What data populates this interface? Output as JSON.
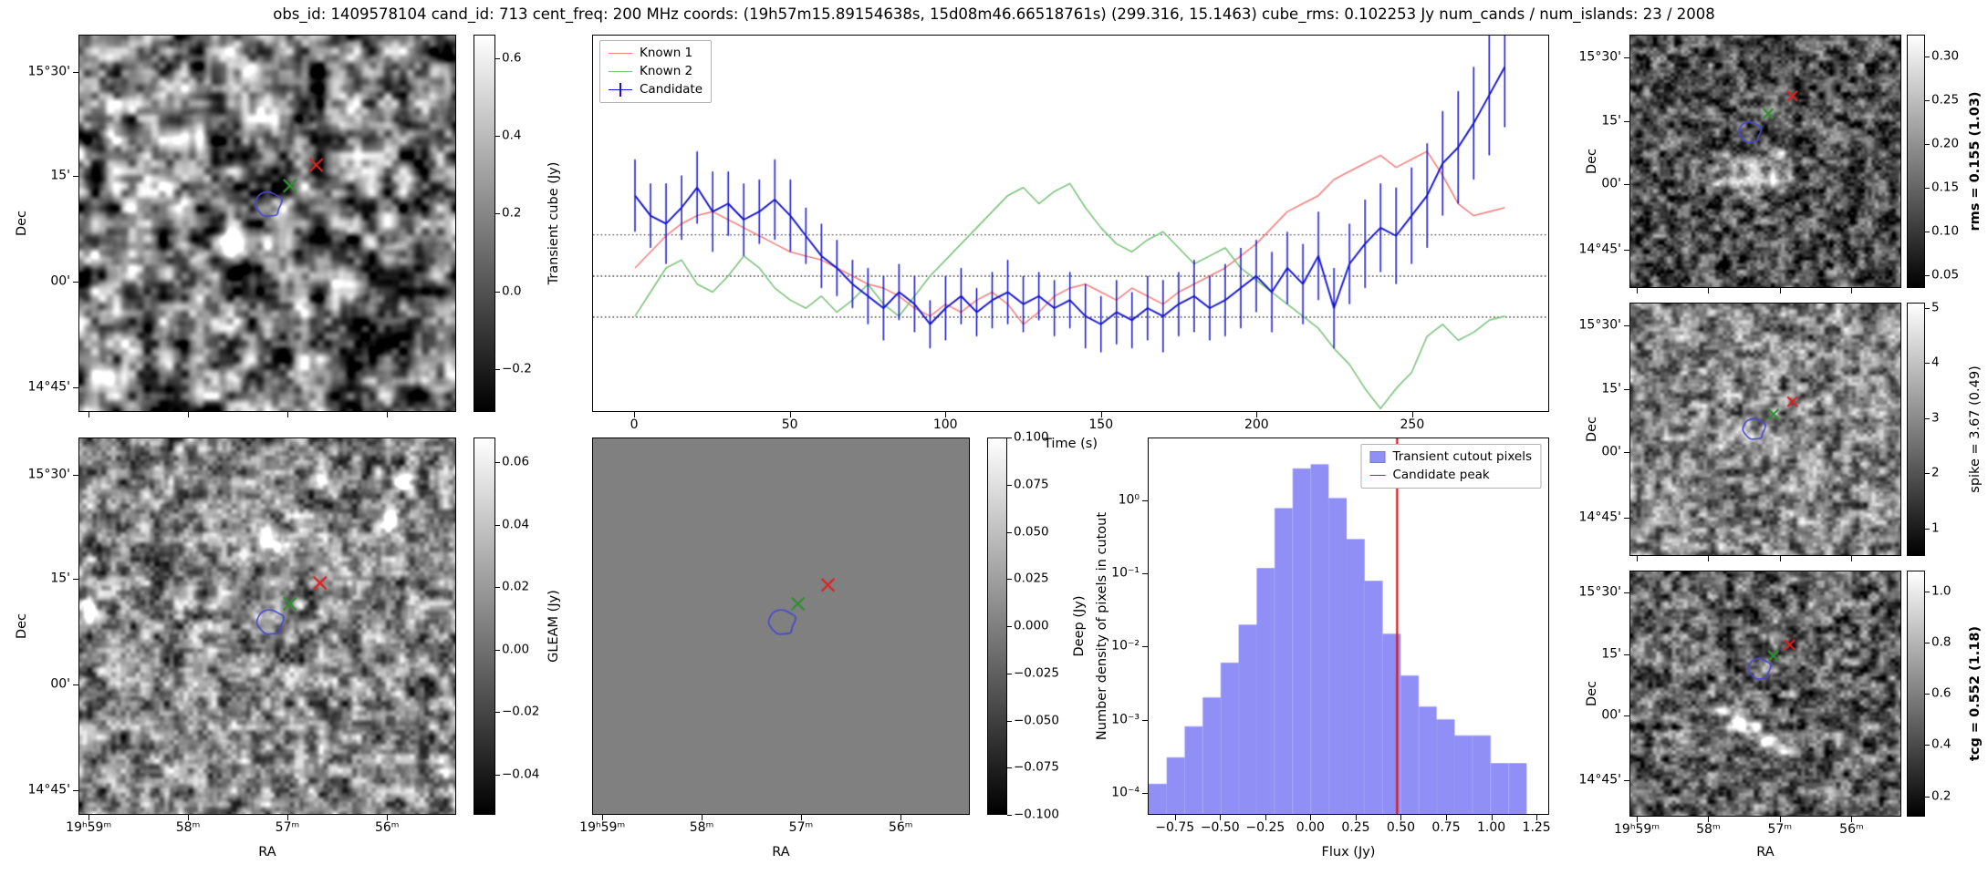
{
  "title": "obs_id: 1409578104 cand_id: 713 cent_freq: 200 MHz coords: (19h57m15.89154638s, 15d08m46.66518761s) (299.316, 15.1463) cube_rms: 0.102253 Jy num_cands / num_islands: 23 / 2008",
  "colors": {
    "known1": "#f4827e",
    "known2": "#7cc47c",
    "candidate": "#1414d2",
    "marker_green": "#2f8f2f",
    "marker_red": "#df2222",
    "contour": "#4848cf",
    "hist_fill": "#8f8ff5",
    "hist_peak_line": "#e01212",
    "dotted_line": "#000000"
  },
  "axes": {
    "dec_label": "Dec",
    "ra_label": "RA",
    "dec_ticks": [
      "15°30'",
      "15'",
      "00'",
      "14°45'"
    ],
    "ra_ticks": [
      "19ʰ59ᵐ",
      "58ᵐ",
      "57ᵐ",
      "56ᵐ"
    ]
  },
  "colorbars": {
    "cube": {
      "label": "Transient cube (Jy)",
      "bold": false,
      "tick_labels": [
        "0.6",
        "0.4",
        "0.2",
        "0.0",
        "−0.2"
      ],
      "tick_values": [
        0.6,
        0.4,
        0.2,
        0.0,
        -0.2
      ],
      "vmin": -0.31,
      "vmax": 0.66
    },
    "gleam": {
      "label": "GLEAM (Jy)",
      "bold": false,
      "tick_labels": [
        "0.06",
        "0.04",
        "0.02",
        "0.00",
        "−0.02",
        "−0.04"
      ],
      "tick_values": [
        0.06,
        0.04,
        0.02,
        0.0,
        -0.02,
        -0.04
      ],
      "vmin": -0.053,
      "vmax": 0.068
    },
    "deep": {
      "label": "Deep (Jy)",
      "bold": false,
      "tick_labels": [
        "0.100",
        "0.075",
        "0.050",
        "0.025",
        "0.000",
        "−0.025",
        "−0.050",
        "−0.075",
        "−0.100"
      ],
      "tick_values": [
        0.1,
        0.075,
        0.05,
        0.025,
        0.0,
        -0.025,
        -0.05,
        -0.075,
        -0.1
      ],
      "vmin": -0.1,
      "vmax": 0.1
    },
    "rms": {
      "label": "rms = 0.155 (1.03)",
      "bold": true,
      "tick_labels": [
        "0.30",
        "0.25",
        "0.20",
        "0.15",
        "0.10",
        "0.05"
      ],
      "tick_values": [
        0.3,
        0.25,
        0.2,
        0.15,
        0.1,
        0.05
      ],
      "vmin": 0.035,
      "vmax": 0.325
    },
    "spike": {
      "label": "spike = 3.67 (0.49)",
      "bold": false,
      "tick_labels": [
        "5",
        "4",
        "3",
        "2",
        "1"
      ],
      "tick_values": [
        5,
        4,
        3,
        2,
        1
      ],
      "vmin": 0.5,
      "vmax": 5.1
    },
    "tcg": {
      "label": "tcg = 0.552 (1.18)",
      "bold": true,
      "tick_labels": [
        "1.0",
        "0.8",
        "0.6",
        "0.4",
        "0.2"
      ],
      "tick_values": [
        1.0,
        0.8,
        0.6,
        0.4,
        0.2
      ],
      "vmin": 0.12,
      "vmax": 1.08
    }
  },
  "panels": {
    "cube": {
      "markers": {
        "green": [
          0.56,
          0.4
        ],
        "red": [
          0.63,
          0.345
        ],
        "contour": [
          0.5,
          0.45
        ]
      }
    },
    "gleam": {
      "markers": {
        "green": [
          0.56,
          0.44
        ],
        "red": [
          0.64,
          0.385
        ],
        "contour": [
          0.505,
          0.49
        ]
      }
    },
    "deep": {
      "markers": {
        "green": [
          0.545,
          0.44
        ],
        "red": [
          0.625,
          0.39
        ],
        "contour": [
          0.5,
          0.49
        ]
      }
    },
    "rms": {
      "markers": {
        "green": [
          0.51,
          0.31
        ],
        "red": [
          0.6,
          0.24
        ],
        "contour": [
          0.44,
          0.385
        ]
      }
    },
    "spike": {
      "markers": {
        "green": [
          0.53,
          0.44
        ],
        "red": [
          0.6,
          0.39
        ],
        "contour": [
          0.455,
          0.5
        ]
      }
    },
    "tcg": {
      "markers": {
        "green": [
          0.53,
          0.345
        ],
        "red": [
          0.59,
          0.3
        ],
        "contour": [
          0.475,
          0.4
        ]
      }
    }
  },
  "chart_data": [
    {
      "type": "line",
      "name": "lightcurve",
      "xlabel": "Time (s)",
      "ylabel": "",
      "xlim": [
        -13.5,
        294
      ],
      "ylim": [
        -0.336,
        0.598
      ],
      "xticks": [
        0,
        50,
        100,
        150,
        200,
        250
      ],
      "hlines": [
        0.102253,
        0.0,
        -0.102253
      ],
      "legend_position": "upper left",
      "x": [
        0,
        5,
        10,
        15,
        20,
        25,
        30,
        35,
        40,
        45,
        50,
        55,
        60,
        65,
        70,
        75,
        80,
        85,
        90,
        95,
        100,
        105,
        110,
        115,
        120,
        125,
        130,
        135,
        140,
        145,
        150,
        155,
        160,
        165,
        170,
        175,
        180,
        185,
        190,
        195,
        200,
        205,
        210,
        215,
        220,
        225,
        230,
        235,
        240,
        245,
        250,
        255,
        260,
        265,
        270,
        275,
        280
      ],
      "series": [
        {
          "name": "Known 1",
          "values": [
            0.02,
            0.06,
            0.1,
            0.13,
            0.15,
            0.16,
            0.14,
            0.12,
            0.1,
            0.08,
            0.06,
            0.05,
            0.04,
            0.02,
            0.0,
            -0.02,
            -0.03,
            -0.05,
            -0.08,
            -0.1,
            -0.07,
            -0.09,
            -0.06,
            -0.04,
            -0.07,
            -0.12,
            -0.09,
            -0.05,
            -0.03,
            -0.02,
            -0.04,
            -0.06,
            -0.03,
            -0.05,
            -0.07,
            -0.04,
            -0.02,
            0.0,
            0.02,
            0.05,
            0.08,
            0.12,
            0.16,
            0.18,
            0.2,
            0.24,
            0.26,
            0.28,
            0.3,
            0.27,
            0.29,
            0.31,
            0.25,
            0.18,
            0.15,
            0.16,
            0.17
          ]
        },
        {
          "name": "Known 2",
          "values": [
            -0.1,
            -0.04,
            0.02,
            0.04,
            -0.02,
            -0.04,
            0.0,
            0.05,
            0.02,
            -0.03,
            -0.06,
            -0.08,
            -0.05,
            -0.09,
            -0.06,
            -0.02,
            -0.07,
            -0.1,
            -0.05,
            0.0,
            0.04,
            0.08,
            0.12,
            0.16,
            0.2,
            0.22,
            0.18,
            0.21,
            0.23,
            0.17,
            0.12,
            0.08,
            0.06,
            0.09,
            0.11,
            0.07,
            0.03,
            0.05,
            0.07,
            0.02,
            -0.01,
            -0.04,
            -0.07,
            -0.1,
            -0.13,
            -0.18,
            -0.22,
            -0.28,
            -0.33,
            -0.28,
            -0.24,
            -0.15,
            -0.12,
            -0.16,
            -0.14,
            -0.11,
            -0.1
          ]
        },
        {
          "name": "Candidate",
          "values": [
            0.2,
            0.15,
            0.13,
            0.17,
            0.22,
            0.16,
            0.18,
            0.14,
            0.16,
            0.19,
            0.15,
            0.1,
            0.05,
            0.02,
            -0.02,
            -0.05,
            -0.08,
            -0.04,
            -0.07,
            -0.12,
            -0.08,
            -0.05,
            -0.09,
            -0.06,
            -0.04,
            -0.07,
            -0.05,
            -0.08,
            -0.06,
            -0.1,
            -0.12,
            -0.09,
            -0.11,
            -0.08,
            -0.1,
            -0.07,
            -0.05,
            -0.08,
            -0.06,
            -0.03,
            0.0,
            -0.04,
            0.02,
            -0.02,
            0.05,
            -0.08,
            0.03,
            0.08,
            0.12,
            0.1,
            0.15,
            0.2,
            0.28,
            0.32,
            0.38,
            0.45,
            0.52
          ],
          "errors": [
            0.09,
            0.08,
            0.1,
            0.08,
            0.09,
            0.1,
            0.08,
            0.09,
            0.08,
            0.1,
            0.09,
            0.07,
            0.08,
            0.07,
            0.06,
            0.07,
            0.08,
            0.07,
            0.07,
            0.06,
            0.08,
            0.07,
            0.06,
            0.07,
            0.08,
            0.07,
            0.06,
            0.07,
            0.07,
            0.08,
            0.07,
            0.08,
            0.07,
            0.08,
            0.09,
            0.08,
            0.09,
            0.08,
            0.09,
            0.1,
            0.09,
            0.1,
            0.09,
            0.1,
            0.11,
            0.1,
            0.1,
            0.11,
            0.11,
            0.12,
            0.12,
            0.13,
            0.13,
            0.14,
            0.14,
            0.15,
            0.15
          ]
        }
      ]
    },
    {
      "type": "bar",
      "name": "flux-histogram",
      "xlabel": "Flux (Jy)",
      "ylabel": "Number density of pixels in cutout",
      "yscale": "log",
      "xlim": [
        -0.9,
        1.32
      ],
      "ylim_log": [
        -4.3,
        0.86
      ],
      "bin_start": -0.9,
      "bin_width": 0.1,
      "densities": [
        0.00013,
        0.0003,
        0.0008,
        0.002,
        0.006,
        0.02,
        0.12,
        0.8,
        2.8,
        3.2,
        1.1,
        0.3,
        0.08,
        0.015,
        0.004,
        0.0015,
        0.001,
        0.0006,
        0.0006,
        0.00025,
        0.00025
      ],
      "vline": {
        "x": 0.48,
        "label": "Candidate peak"
      },
      "legend": [
        "Transient cutout pixels",
        "Candidate peak"
      ],
      "xtick_labels": [
        "−0.75",
        "−0.50",
        "−0.25",
        "0.00",
        "0.25",
        "0.50",
        "0.75",
        "1.00",
        "1.25"
      ],
      "xtick_values": [
        -0.75,
        -0.5,
        -0.25,
        0.0,
        0.25,
        0.5,
        0.75,
        1.0,
        1.25
      ],
      "ytick_labels": [
        "10⁰",
        "10⁻¹",
        "10⁻²",
        "10⁻³",
        "10⁻⁴"
      ],
      "ytick_values": [
        1,
        0.1,
        0.01,
        0.001,
        0.0001
      ]
    }
  ]
}
